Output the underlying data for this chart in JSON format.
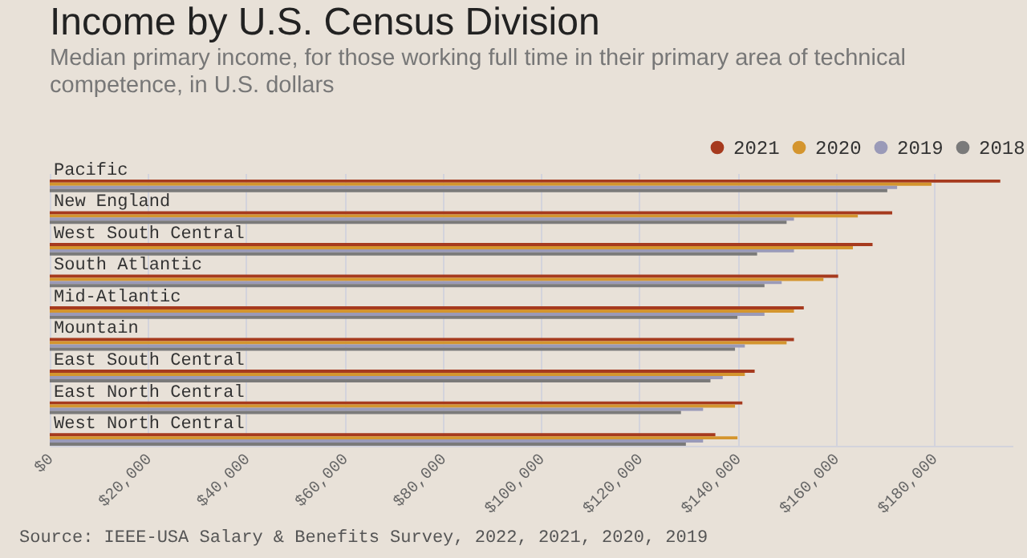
{
  "chart_data": {
    "type": "bar",
    "orientation": "horizontal",
    "title": "Income by U.S. Census Division",
    "subtitle": "Median primary income, for those working full time in their primary area of technical competence, in U.S. dollars",
    "categories": [
      "Pacific",
      "New England",
      "West South Central",
      "South Atlantic",
      "Mid-Atlantic",
      "Mountain",
      "East South Central",
      "East North Central",
      "West North Central"
    ],
    "series": [
      {
        "name": "2021",
        "color": "#a63a1e",
        "values": [
          193500,
          171500,
          167500,
          160500,
          153500,
          151500,
          143500,
          141000,
          135500
        ]
      },
      {
        "name": "2020",
        "color": "#d4952e",
        "values": [
          179500,
          164500,
          163500,
          157500,
          151500,
          150000,
          141500,
          139500,
          140000
        ]
      },
      {
        "name": "2019",
        "color": "#9a9ab8",
        "values": [
          172500,
          151500,
          151500,
          149000,
          145500,
          141500,
          137000,
          133000,
          133000
        ]
      },
      {
        "name": "2018",
        "color": "#7a7a7a",
        "values": [
          170500,
          150000,
          144000,
          145500,
          140000,
          139500,
          134500,
          128500,
          129500
        ]
      }
    ],
    "xlim": [
      0,
      196000
    ],
    "xticks": [
      {
        "value": 0,
        "label": "$0"
      },
      {
        "value": 20000,
        "label": "$20,000"
      },
      {
        "value": 40000,
        "label": "$40,000"
      },
      {
        "value": 60000,
        "label": "$60,000"
      },
      {
        "value": 80000,
        "label": "$80,000"
      },
      {
        "value": 100000,
        "label": "$100,000"
      },
      {
        "value": 120000,
        "label": "$120,000"
      },
      {
        "value": 140000,
        "label": "$140,000"
      },
      {
        "value": 160000,
        "label": "$160,000"
      },
      {
        "value": 180000,
        "label": "$180,000"
      }
    ],
    "grid": "x",
    "legend": "top right",
    "annotations": [
      "Source: IEEE-USA Salary & Benefits Survey, 2022, 2021, 2020, 2019"
    ]
  }
}
